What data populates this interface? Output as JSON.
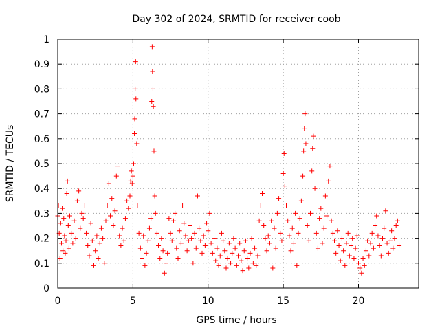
{
  "chart_data": {
    "type": "scatter",
    "title": "Day 302 of 2024, SRMTID for receiver coob",
    "xlabel": "GPS time / hours",
    "ylabel": "SRMTID / TECUs",
    "xlim": [
      0,
      24
    ],
    "ylim": [
      0,
      1
    ],
    "xticks": [
      0,
      5,
      10,
      15,
      20
    ],
    "xtick_labels": [
      "0",
      "5",
      "10",
      "15",
      "20"
    ],
    "yticks": [
      0,
      0.1,
      0.2,
      0.3,
      0.4,
      0.5,
      0.6,
      0.7,
      0.8,
      0.9,
      1
    ],
    "ytick_labels": [
      "0",
      "0.1",
      "0.2",
      "0.3",
      "0.4",
      "0.5",
      "0.6",
      "0.7",
      "0.8",
      "0.9",
      "1"
    ],
    "grid": true,
    "marker": "+",
    "color": "#ff0000",
    "series": [
      {
        "name": "SRMTID",
        "points": [
          [
            0.0,
            0.29
          ],
          [
            0.05,
            0.33
          ],
          [
            0.1,
            0.22
          ],
          [
            0.15,
            0.12
          ],
          [
            0.2,
            0.26
          ],
          [
            0.25,
            0.18
          ],
          [
            0.3,
            0.32
          ],
          [
            0.35,
            0.15
          ],
          [
            0.4,
            0.28
          ],
          [
            0.45,
            0.21
          ],
          [
            0.5,
            0.14
          ],
          [
            0.55,
            0.19
          ],
          [
            0.6,
            0.38
          ],
          [
            0.65,
            0.43
          ],
          [
            0.7,
            0.25
          ],
          [
            0.75,
            0.16
          ],
          [
            0.8,
            0.29
          ],
          [
            0.9,
            0.22
          ],
          [
            1.0,
            0.18
          ],
          [
            1.1,
            0.27
          ],
          [
            1.2,
            0.2
          ],
          [
            1.3,
            0.35
          ],
          [
            1.4,
            0.39
          ],
          [
            1.5,
            0.24
          ],
          [
            1.6,
            0.3
          ],
          [
            1.7,
            0.28
          ],
          [
            1.8,
            0.33
          ],
          [
            1.9,
            0.22
          ],
          [
            2.0,
            0.17
          ],
          [
            2.1,
            0.13
          ],
          [
            2.2,
            0.26
          ],
          [
            2.3,
            0.19
          ],
          [
            2.4,
            0.09
          ],
          [
            2.5,
            0.15
          ],
          [
            2.6,
            0.21
          ],
          [
            2.7,
            0.12
          ],
          [
            2.8,
            0.18
          ],
          [
            2.9,
            0.24
          ],
          [
            3.0,
            0.2
          ],
          [
            3.1,
            0.1
          ],
          [
            3.2,
            0.27
          ],
          [
            3.3,
            0.33
          ],
          [
            3.4,
            0.42
          ],
          [
            3.5,
            0.29
          ],
          [
            3.6,
            0.36
          ],
          [
            3.7,
            0.25
          ],
          [
            3.8,
            0.31
          ],
          [
            3.9,
            0.45
          ],
          [
            4.0,
            0.49
          ],
          [
            4.1,
            0.21
          ],
          [
            4.2,
            0.17
          ],
          [
            4.3,
            0.24
          ],
          [
            4.4,
            0.19
          ],
          [
            4.5,
            0.28
          ],
          [
            4.6,
            0.35
          ],
          [
            4.7,
            0.32
          ],
          [
            4.8,
            0.37
          ],
          [
            4.85,
            0.43
          ],
          [
            4.9,
            0.47
          ],
          [
            4.95,
            0.42
          ],
          [
            5.0,
            0.45
          ],
          [
            5.05,
            0.5
          ],
          [
            5.1,
            0.62
          ],
          [
            5.12,
            0.68
          ],
          [
            5.15,
            0.8
          ],
          [
            5.18,
            0.91
          ],
          [
            5.2,
            0.76
          ],
          [
            5.25,
            0.58
          ],
          [
            5.3,
            0.33
          ],
          [
            5.4,
            0.22
          ],
          [
            5.5,
            0.16
          ],
          [
            5.6,
            0.12
          ],
          [
            5.7,
            0.21
          ],
          [
            5.8,
            0.09
          ],
          [
            5.9,
            0.14
          ],
          [
            6.0,
            0.19
          ],
          [
            6.1,
            0.24
          ],
          [
            6.2,
            0.28
          ],
          [
            6.25,
            0.75
          ],
          [
            6.28,
            0.97
          ],
          [
            6.3,
            0.87
          ],
          [
            6.33,
            0.8
          ],
          [
            6.36,
            0.73
          ],
          [
            6.4,
            0.55
          ],
          [
            6.45,
            0.37
          ],
          [
            6.5,
            0.3
          ],
          [
            6.6,
            0.22
          ],
          [
            6.7,
            0.17
          ],
          [
            6.8,
            0.12
          ],
          [
            6.9,
            0.2
          ],
          [
            7.0,
            0.15
          ],
          [
            7.1,
            0.06
          ],
          [
            7.2,
            0.1
          ],
          [
            7.3,
            0.14
          ],
          [
            7.4,
            0.28
          ],
          [
            7.5,
            0.22
          ],
          [
            7.6,
            0.19
          ],
          [
            7.7,
            0.27
          ],
          [
            7.8,
            0.3
          ],
          [
            7.9,
            0.16
          ],
          [
            8.0,
            0.12
          ],
          [
            8.1,
            0.23
          ],
          [
            8.2,
            0.18
          ],
          [
            8.3,
            0.33
          ],
          [
            8.4,
            0.26
          ],
          [
            8.5,
            0.21
          ],
          [
            8.6,
            0.15
          ],
          [
            8.7,
            0.19
          ],
          [
            8.8,
            0.25
          ],
          [
            8.9,
            0.2
          ],
          [
            9.0,
            0.1
          ],
          [
            9.1,
            0.22
          ],
          [
            9.2,
            0.16
          ],
          [
            9.3,
            0.37
          ],
          [
            9.4,
            0.24
          ],
          [
            9.5,
            0.19
          ],
          [
            9.6,
            0.14
          ],
          [
            9.7,
            0.21
          ],
          [
            9.8,
            0.17
          ],
          [
            9.9,
            0.26
          ],
          [
            10.0,
            0.23
          ],
          [
            10.1,
            0.3
          ],
          [
            10.2,
            0.18
          ],
          [
            10.3,
            0.14
          ],
          [
            10.4,
            0.2
          ],
          [
            10.5,
            0.11
          ],
          [
            10.6,
            0.16
          ],
          [
            10.7,
            0.09
          ],
          [
            10.8,
            0.13
          ],
          [
            10.9,
            0.22
          ],
          [
            11.0,
            0.19
          ],
          [
            11.1,
            0.15
          ],
          [
            11.2,
            0.08
          ],
          [
            11.3,
            0.12
          ],
          [
            11.4,
            0.18
          ],
          [
            11.5,
            0.1
          ],
          [
            11.6,
            0.14
          ],
          [
            11.7,
            0.2
          ],
          [
            11.8,
            0.16
          ],
          [
            11.9,
            0.09
          ],
          [
            12.0,
            0.13
          ],
          [
            12.1,
            0.18
          ],
          [
            12.2,
            0.11
          ],
          [
            12.3,
            0.07
          ],
          [
            12.4,
            0.15
          ],
          [
            12.5,
            0.19
          ],
          [
            12.6,
            0.12
          ],
          [
            12.7,
            0.08
          ],
          [
            12.8,
            0.14
          ],
          [
            12.9,
            0.2
          ],
          [
            13.0,
            0.1
          ],
          [
            13.1,
            0.16
          ],
          [
            13.2,
            0.09
          ],
          [
            13.3,
            0.13
          ],
          [
            13.4,
            0.27
          ],
          [
            13.5,
            0.33
          ],
          [
            13.6,
            0.38
          ],
          [
            13.7,
            0.25
          ],
          [
            13.8,
            0.2
          ],
          [
            13.9,
            0.15
          ],
          [
            14.0,
            0.21
          ],
          [
            14.1,
            0.18
          ],
          [
            14.2,
            0.27
          ],
          [
            14.3,
            0.08
          ],
          [
            14.4,
            0.24
          ],
          [
            14.5,
            0.16
          ],
          [
            14.6,
            0.3
          ],
          [
            14.7,
            0.36
          ],
          [
            14.8,
            0.22
          ],
          [
            14.9,
            0.19
          ],
          [
            15.0,
            0.46
          ],
          [
            15.05,
            0.54
          ],
          [
            15.1,
            0.41
          ],
          [
            15.2,
            0.33
          ],
          [
            15.3,
            0.27
          ],
          [
            15.4,
            0.21
          ],
          [
            15.5,
            0.15
          ],
          [
            15.6,
            0.24
          ],
          [
            15.7,
            0.18
          ],
          [
            15.8,
            0.3
          ],
          [
            15.9,
            0.09
          ],
          [
            16.0,
            0.22
          ],
          [
            16.1,
            0.28
          ],
          [
            16.2,
            0.35
          ],
          [
            16.3,
            0.45
          ],
          [
            16.35,
            0.55
          ],
          [
            16.4,
            0.64
          ],
          [
            16.45,
            0.7
          ],
          [
            16.5,
            0.58
          ],
          [
            16.6,
            0.25
          ],
          [
            16.7,
            0.19
          ],
          [
            16.8,
            0.3
          ],
          [
            16.9,
            0.47
          ],
          [
            16.95,
            0.56
          ],
          [
            17.0,
            0.61
          ],
          [
            17.1,
            0.4
          ],
          [
            17.2,
            0.22
          ],
          [
            17.3,
            0.16
          ],
          [
            17.4,
            0.28
          ],
          [
            17.5,
            0.32
          ],
          [
            17.6,
            0.18
          ],
          [
            17.7,
            0.24
          ],
          [
            17.8,
            0.37
          ],
          [
            17.9,
            0.29
          ],
          [
            18.0,
            0.43
          ],
          [
            18.1,
            0.49
          ],
          [
            18.2,
            0.27
          ],
          [
            18.3,
            0.22
          ],
          [
            18.4,
            0.19
          ],
          [
            18.5,
            0.14
          ],
          [
            18.6,
            0.23
          ],
          [
            18.7,
            0.17
          ],
          [
            18.8,
            0.11
          ],
          [
            18.9,
            0.2
          ],
          [
            19.0,
            0.15
          ],
          [
            19.1,
            0.09
          ],
          [
            19.2,
            0.18
          ],
          [
            19.3,
            0.22
          ],
          [
            19.4,
            0.13
          ],
          [
            19.5,
            0.17
          ],
          [
            19.6,
            0.2
          ],
          [
            19.7,
            0.12
          ],
          [
            19.8,
            0.16
          ],
          [
            19.9,
            0.21
          ],
          [
            20.0,
            0.1
          ],
          [
            20.1,
            0.08
          ],
          [
            20.2,
            0.06
          ],
          [
            20.3,
            0.12
          ],
          [
            20.4,
            0.09
          ],
          [
            20.5,
            0.15
          ],
          [
            20.6,
            0.19
          ],
          [
            20.7,
            0.13
          ],
          [
            20.8,
            0.18
          ],
          [
            20.9,
            0.22
          ],
          [
            21.0,
            0.16
          ],
          [
            21.1,
            0.25
          ],
          [
            21.2,
            0.29
          ],
          [
            21.3,
            0.21
          ],
          [
            21.4,
            0.17
          ],
          [
            21.5,
            0.13
          ],
          [
            21.6,
            0.2
          ],
          [
            21.7,
            0.24
          ],
          [
            21.8,
            0.31
          ],
          [
            21.9,
            0.18
          ],
          [
            22.0,
            0.14
          ],
          [
            22.1,
            0.19
          ],
          [
            22.2,
            0.23
          ],
          [
            22.3,
            0.16
          ],
          [
            22.4,
            0.2
          ],
          [
            22.5,
            0.25
          ],
          [
            22.6,
            0.27
          ],
          [
            22.7,
            0.17
          ]
        ]
      }
    ]
  }
}
